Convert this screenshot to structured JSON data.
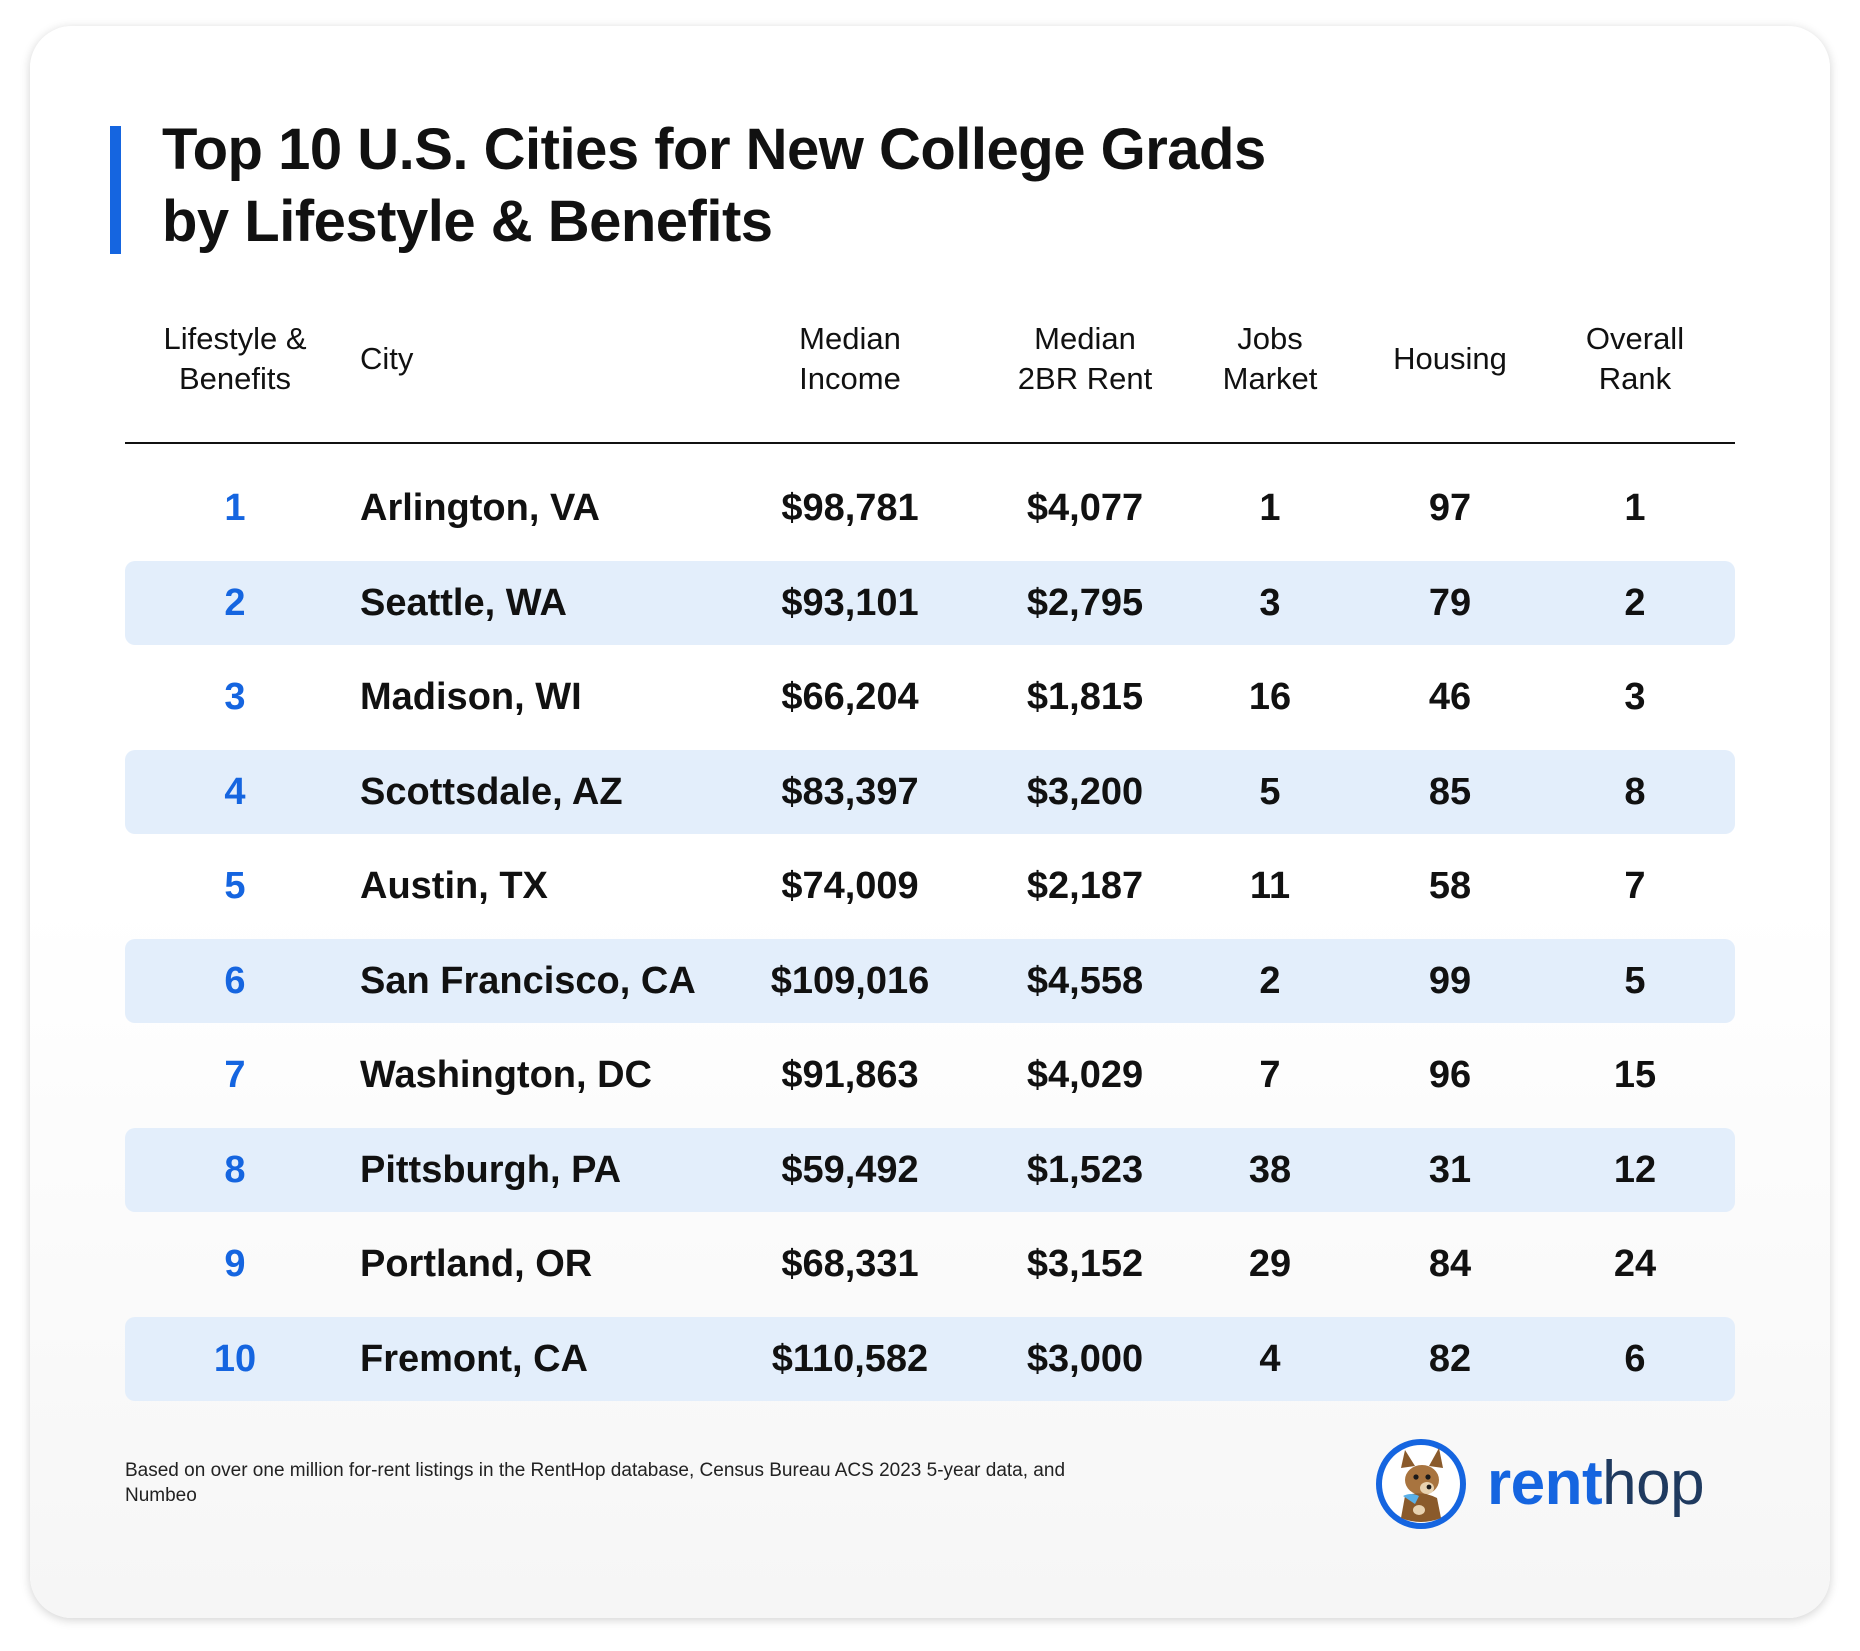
{
  "title_lines": [
    "Top 10 U.S. Cities for New College Grads",
    "by Lifestyle & Benefits"
  ],
  "chart_data": {
    "type": "table",
    "columns": [
      "Lifestyle &\nBenefits",
      "City",
      "Median\nIncome",
      "Median\n2BR Rent",
      "Jobs\nMarket",
      "Housing",
      "Overall\nRank"
    ],
    "rows": [
      [
        "1",
        "Arlington, VA",
        "$98,781",
        "$4,077",
        "1",
        "97",
        "1"
      ],
      [
        "2",
        "Seattle, WA",
        "$93,101",
        "$2,795",
        "3",
        "79",
        "2"
      ],
      [
        "3",
        "Madison, WI",
        "$66,204",
        "$1,815",
        "16",
        "46",
        "3"
      ],
      [
        "4",
        "Scottsdale, AZ",
        "$83,397",
        "$3,200",
        "5",
        "85",
        "8"
      ],
      [
        "5",
        "Austin, TX",
        "$74,009",
        "$2,187",
        "11",
        "58",
        "7"
      ],
      [
        "6",
        "San Francisco, CA",
        "$109,016",
        "$4,558",
        "2",
        "99",
        "5"
      ],
      [
        "7",
        "Washington, DC",
        "$91,863",
        "$4,029",
        "7",
        "96",
        "15"
      ],
      [
        "8",
        "Pittsburgh, PA",
        "$59,492",
        "$1,523",
        "38",
        "31",
        "12"
      ],
      [
        "9",
        "Portland, OR",
        "$68,331",
        "$3,152",
        "29",
        "84",
        "24"
      ],
      [
        "10",
        "Fremont, CA",
        "$110,582",
        "$3,000",
        "4",
        "82",
        "6"
      ]
    ]
  },
  "footnote": "Based on over one million for-rent listings in the RentHop database, Census Bureau ACS 2023 5-year data, and Numbeo",
  "brand": {
    "part1": "rent",
    "part2": "hop",
    "icon": "dog-mascot-icon"
  },
  "colors": {
    "accent": "#1565e0",
    "row_shade": "#e3eefb",
    "text": "#111111"
  }
}
